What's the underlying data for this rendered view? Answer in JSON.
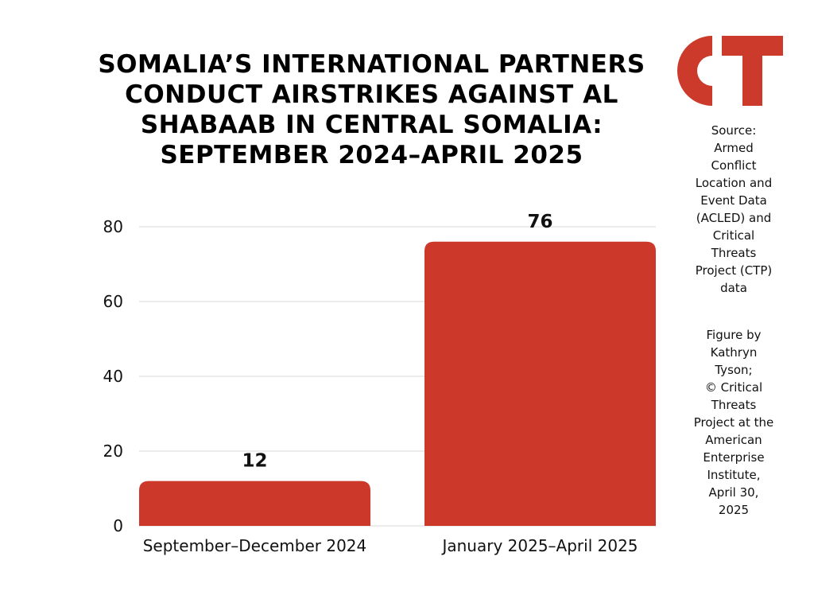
{
  "title_lines": [
    "SOMALIA’S INTERNATIONAL PARTNERS",
    "CONDUCT AIRSTRIKES AGAINST AL",
    "SHABAAB IN CENTRAL SOMALIA:",
    "SEPTEMBER 2024–APRIL 2025"
  ],
  "logo": {
    "text": "CT",
    "icon": "critical-threats-logo",
    "color": "#cb3a2a"
  },
  "source_lines": [
    "Source:",
    "Armed",
    "Conflict",
    "Location and",
    "Event Data",
    "(ACLED) and",
    "Critical",
    "Threats",
    "Project (CTP)",
    "data"
  ],
  "credit_lines": [
    "Figure by",
    "Kathryn",
    "Tyson;",
    "© Critical",
    "Threats",
    "Project at the",
    "American",
    "Enterprise",
    "Institute,",
    "April 30,",
    "2025"
  ],
  "colors": {
    "bar": "#cc3829",
    "grid": "#d9d9d9",
    "text": "#111111"
  },
  "chart_data": {
    "type": "bar",
    "categories": [
      "September–December 2024",
      "January 2025–April 2025"
    ],
    "values": [
      12,
      76
    ],
    "data_labels": [
      "12",
      "76"
    ],
    "title": "SOMALIA’S INTERNATIONAL PARTNERS CONDUCT AIRSTRIKES AGAINST AL SHABAAB IN CENTRAL SOMALIA: SEPTEMBER 2024–APRIL 2025",
    "xlabel": "",
    "ylabel": "",
    "ylim": [
      0,
      80
    ],
    "yticks": [
      0,
      20,
      40,
      60,
      80
    ],
    "grid": true,
    "legend": "none"
  }
}
